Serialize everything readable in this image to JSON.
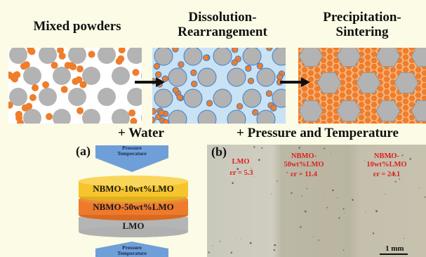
{
  "stages": {
    "stage1_title": "Mixed powders",
    "stage2_title_line1": "Dissolution-",
    "stage2_title_line2": "Rearrangement",
    "stage3_title_line1": "Precipitation-",
    "stage3_title_line2": "Sintering"
  },
  "process_labels": {
    "water": "+ Water",
    "pressure_temp": "+ Pressure and Temperature"
  },
  "panel_a": {
    "label": "(a)",
    "arrow_top_line1": "Pressure",
    "arrow_top_line2": "Temperature",
    "layer1": "NBMO-10wt%LMO",
    "layer2": "NBMO-50wt%LMO",
    "layer3": "LMO",
    "arrow_bottom_line1": "Pressure",
    "arrow_bottom_line2": "Temperature"
  },
  "panel_b": {
    "label": "(b)",
    "zone1_name": "LMO",
    "zone1_eps": "εr = 5.3",
    "zone2_name_line1": "NBMO-",
    "zone2_name_line2": "50wt%LMO",
    "zone2_eps": "εr = 11.4",
    "zone3_name_line1": "NBMO-",
    "zone3_name_line2": "10wt%LMO",
    "zone3_eps": "εr = 24.1",
    "scale_bar": "1 mm"
  },
  "colors": {
    "background": "#fbfbe6",
    "orange_particle": "#ef7d2a",
    "gray_particle": "#b3b3b3",
    "water_blue": "#c9e3f4",
    "layer_yellow": "#f6c52d",
    "layer_orange": "#ee7a2c",
    "layer_gray": "#b5b5b5",
    "arrow_blue": "#6f9fd8",
    "annotation_red": "#e02020"
  }
}
